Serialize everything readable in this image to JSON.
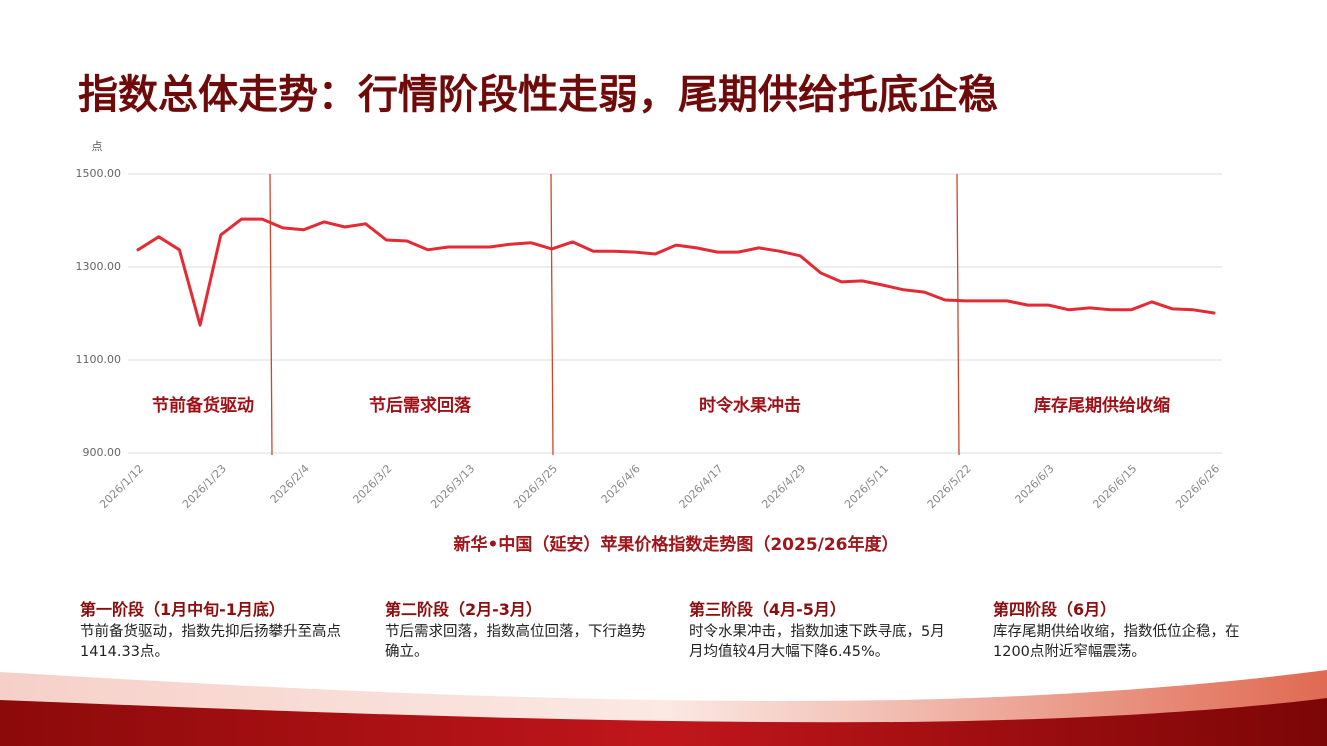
{
  "title": "指数总体走势：行情阶段性走弱，尾期供给托底企稳",
  "chart_data": {
    "type": "line",
    "y_label": "点",
    "caption": "新华•中国（延安）苹果价格指数走势图（2025/26年度）",
    "categories": [
      "2026/1/12",
      null,
      null,
      null,
      "2026/1/23",
      null,
      null,
      null,
      "2026/2/4",
      null,
      null,
      null,
      "2026/3/2",
      null,
      null,
      null,
      "2026/3/13",
      null,
      null,
      null,
      "2026/3/25",
      null,
      null,
      null,
      "2026/4/6",
      null,
      null,
      null,
      "2026/4/17",
      null,
      null,
      null,
      "2026/4/29",
      null,
      null,
      null,
      "2026/5/11",
      null,
      null,
      null,
      "2026/5/22",
      null,
      null,
      null,
      "2026/6/3",
      null,
      null,
      null,
      "2026/6/15",
      null,
      null,
      null,
      "2026/6/26"
    ],
    "values": [
      1337,
      1365,
      1337,
      1175,
      1369,
      1403,
      1403,
      1384,
      1380,
      1397,
      1386,
      1393,
      1358,
      1356,
      1337,
      1343,
      1343,
      1343,
      1349,
      1352,
      1339,
      1354,
      1334,
      1334,
      1332,
      1328,
      1347,
      1341,
      1332,
      1332,
      1341,
      1334,
      1324,
      1287,
      1268,
      1270,
      1261,
      1251,
      1246,
      1229,
      1227,
      1227,
      1227,
      1218,
      1218,
      1208,
      1212,
      1208,
      1208,
      1225,
      1210,
      1208,
      1201
    ],
    "color": "#e42a34",
    "ylim": [
      900,
      1500
    ],
    "yticks": [
      {
        "value": 900,
        "label": "900.00"
      },
      {
        "value": 1100,
        "label": "1100.00"
      },
      {
        "value": 1300,
        "label": "1300.00"
      },
      {
        "value": 1500,
        "label": "1500.00"
      }
    ],
    "grid": true,
    "annotations": [
      "节前备货驱动",
      "节后需求回落",
      "时令水果冲击",
      "库存尾期供给收缩"
    ]
  },
  "phases": [
    {
      "heading": "第一阶段（1月中旬-1月底）",
      "body": "节前备货驱动，指数先抑后扬攀升至高点1414.33点。"
    },
    {
      "heading": "第二阶段（2月-3月）",
      "body": "节后需求回落，指数高位回落，下行趋势确立。"
    },
    {
      "heading": "第三阶段（4月-5月）",
      "body": "时令水果冲击，指数加速下跌寻底，5月月均值较4月大幅下降6.45%。"
    },
    {
      "heading": "第四阶段（6月）",
      "body": "库存尾期供给收缩，指数低位企稳，在1200点附近窄幅震荡。"
    }
  ]
}
